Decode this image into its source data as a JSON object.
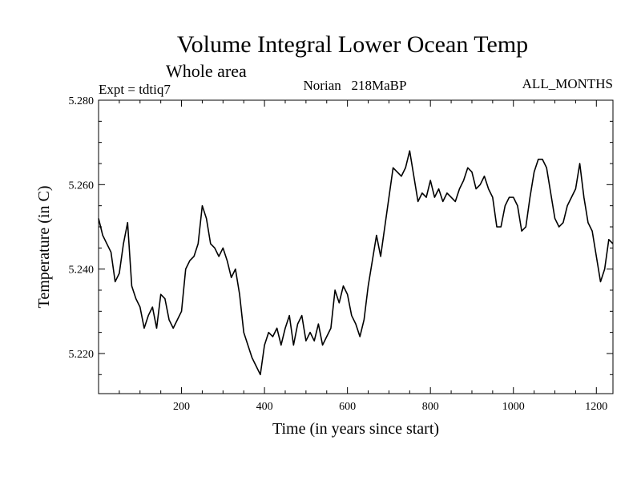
{
  "chart_data": {
    "type": "line",
    "title": "Volume Integral Lower Ocean Temp",
    "subtitle": "Whole area",
    "info_left": "Expt = tdtiq7",
    "info_center": "Norian   218MaBP",
    "info_right": "ALL_MONTHS",
    "xlabel": "Time (in years since start)",
    "ylabel": "Temperature (in C)",
    "xlim": [
      0,
      1240
    ],
    "ylim": [
      5.2105,
      5.28
    ],
    "x_ticks": [
      200,
      400,
      600,
      800,
      1000,
      1200
    ],
    "x_tick_labels": [
      "200",
      "400",
      "600",
      "800",
      "1000",
      "1200"
    ],
    "y_ticks": [
      5.22,
      5.24,
      5.26,
      5.28
    ],
    "y_tick_labels": [
      "5.220",
      "5.240",
      "5.260",
      "5.280"
    ],
    "grid": false,
    "series": [
      {
        "name": "Volume Integral Lower Ocean Temp",
        "color": "#000000",
        "x": [
          0,
          10,
          20,
          30,
          40,
          50,
          60,
          70,
          80,
          90,
          100,
          110,
          120,
          130,
          140,
          150,
          160,
          170,
          180,
          190,
          200,
          210,
          220,
          230,
          240,
          250,
          260,
          270,
          280,
          290,
          300,
          310,
          320,
          330,
          340,
          350,
          360,
          370,
          380,
          390,
          400,
          410,
          420,
          430,
          440,
          450,
          460,
          470,
          480,
          490,
          500,
          510,
          520,
          530,
          540,
          550,
          560,
          570,
          580,
          590,
          600,
          610,
          620,
          630,
          640,
          650,
          660,
          670,
          680,
          690,
          700,
          710,
          720,
          730,
          740,
          750,
          760,
          770,
          780,
          790,
          800,
          810,
          820,
          830,
          840,
          850,
          860,
          870,
          880,
          890,
          900,
          910,
          920,
          930,
          940,
          950,
          960,
          970,
          980,
          990,
          1000,
          1010,
          1020,
          1030,
          1040,
          1050,
          1060,
          1070,
          1080,
          1090,
          1100,
          1110,
          1120,
          1130,
          1140,
          1150,
          1160,
          1170,
          1180,
          1190,
          1200,
          1210,
          1220,
          1230,
          1240
        ],
        "values": [
          5.252,
          5.248,
          5.246,
          5.244,
          5.237,
          5.239,
          5.246,
          5.251,
          5.236,
          5.233,
          5.231,
          5.226,
          5.229,
          5.231,
          5.226,
          5.234,
          5.233,
          5.228,
          5.226,
          5.228,
          5.23,
          5.24,
          5.242,
          5.243,
          5.246,
          5.255,
          5.252,
          5.246,
          5.245,
          5.243,
          5.245,
          5.242,
          5.238,
          5.24,
          5.234,
          5.225,
          5.222,
          5.219,
          5.217,
          5.215,
          5.222,
          5.225,
          5.224,
          5.226,
          5.222,
          5.226,
          5.229,
          5.222,
          5.227,
          5.229,
          5.223,
          5.225,
          5.223,
          5.227,
          5.222,
          5.224,
          5.226,
          5.235,
          5.232,
          5.236,
          5.234,
          5.229,
          5.227,
          5.224,
          5.228,
          5.236,
          5.242,
          5.248,
          5.243,
          5.25,
          5.257,
          5.264,
          5.263,
          5.262,
          5.264,
          5.268,
          5.262,
          5.256,
          5.258,
          5.257,
          5.261,
          5.257,
          5.259,
          5.256,
          5.258,
          5.257,
          5.256,
          5.259,
          5.261,
          5.264,
          5.263,
          5.259,
          5.26,
          5.262,
          5.259,
          5.257,
          5.25,
          5.25,
          5.255,
          5.257,
          5.257,
          5.255,
          5.249,
          5.25,
          5.257,
          5.263,
          5.266,
          5.266,
          5.264,
          5.258,
          5.252,
          5.25,
          5.251,
          5.255,
          5.257,
          5.259,
          5.265,
          5.257,
          5.251,
          5.249,
          5.243,
          5.237,
          5.24,
          5.247,
          5.246
        ]
      }
    ]
  }
}
